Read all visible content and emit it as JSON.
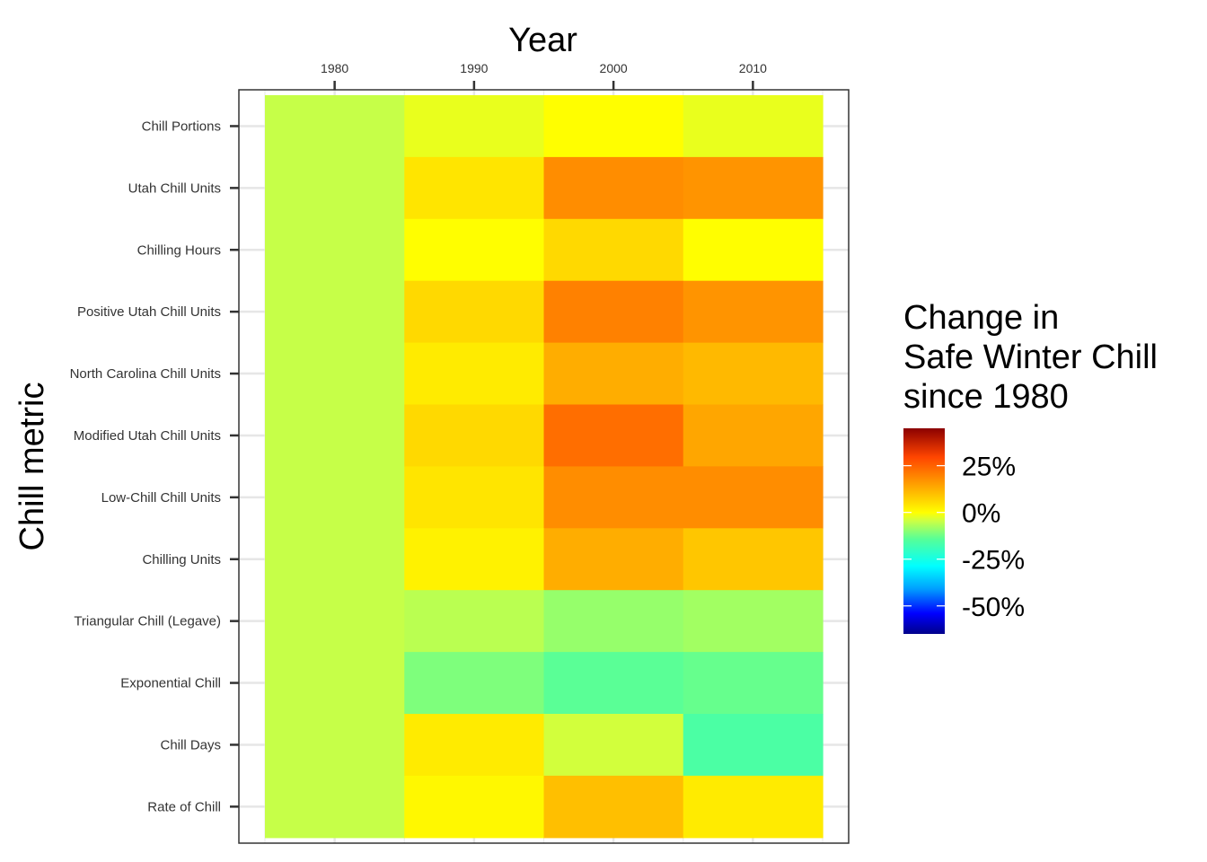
{
  "chart_data": {
    "type": "heatmap",
    "xlabel": "Year",
    "ylabel": "Chill metric",
    "x": [
      1980,
      1990,
      2000,
      2010
    ],
    "x_tick_labels": [
      "1980",
      "1990",
      "2000",
      "2010"
    ],
    "xlim": [
      1975,
      2015
    ],
    "y": [
      "Chill Portions",
      "Utah Chill Units",
      "Chilling Hours",
      "Positive Utah Chill Units",
      "North Carolina Chill Units",
      "Modified Utah Chill Units",
      "Low-Chill Chill Units",
      "Chilling Units",
      "Triangular Chill (Legave)",
      "Exponential Chill",
      "Chill Days",
      "Rate of Chill"
    ],
    "values": [
      [
        -5,
        -2,
        0,
        -2
      ],
      [
        -5,
        4,
        18,
        17
      ],
      [
        -5,
        0,
        6,
        0
      ],
      [
        -5,
        6,
        20,
        17
      ],
      [
        -5,
        3,
        13,
        11
      ],
      [
        -5,
        6,
        23,
        14
      ],
      [
        -5,
        4,
        18,
        18
      ],
      [
        -5,
        2,
        13,
        9
      ],
      [
        -5,
        -6,
        -9,
        -8
      ],
      [
        -5,
        -11,
        -14,
        -13
      ],
      [
        -5,
        3,
        -4,
        -16
      ],
      [
        -5,
        1,
        10,
        3
      ]
    ],
    "legend": {
      "title_lines": [
        "Change in",
        "Safe Winter Chill",
        "since 1980"
      ],
      "breaks": [
        25,
        0,
        -25,
        -50
      ],
      "break_labels": [
        "25%",
        "0%",
        "-25%",
        "-50%"
      ],
      "limits": [
        -65,
        45
      ],
      "position": "right",
      "colors": [
        "#00008b",
        "#0000ff",
        "#00a0ff",
        "#00ffff",
        "#55ff99",
        "#ccff44",
        "#ffff00",
        "#ffa500",
        "#ff4500",
        "#8b0000"
      ]
    },
    "grid": true,
    "panel_border": true
  }
}
